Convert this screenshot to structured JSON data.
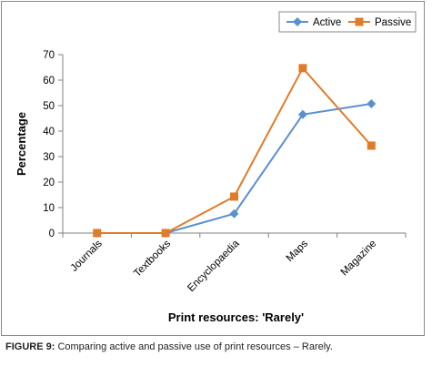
{
  "chart_data": {
    "type": "line",
    "categories": [
      "Journals",
      "Textbooks",
      "Encyclopaedia",
      "Maps",
      "Magazine"
    ],
    "series": [
      {
        "name": "Active",
        "values": [
          0,
          0,
          7.6,
          46.5,
          50.7
        ],
        "color": "#5b8fd0",
        "marker": "diamond"
      },
      {
        "name": "Passive",
        "values": [
          0,
          0,
          14.3,
          64.7,
          34.3
        ],
        "color": "#e07b2a",
        "marker": "square"
      }
    ],
    "title": "",
    "xlabel": "Print resources: 'Rarely'",
    "ylabel": "Percentage",
    "ylim": [
      0,
      70
    ],
    "yticks": [
      0,
      10,
      20,
      30,
      40,
      50,
      60,
      70
    ],
    "grid": false,
    "legend": "top-right"
  },
  "caption": {
    "label": "FIGURE 9:",
    "text": " Comparing active and passive use of print resources – Rarely."
  }
}
